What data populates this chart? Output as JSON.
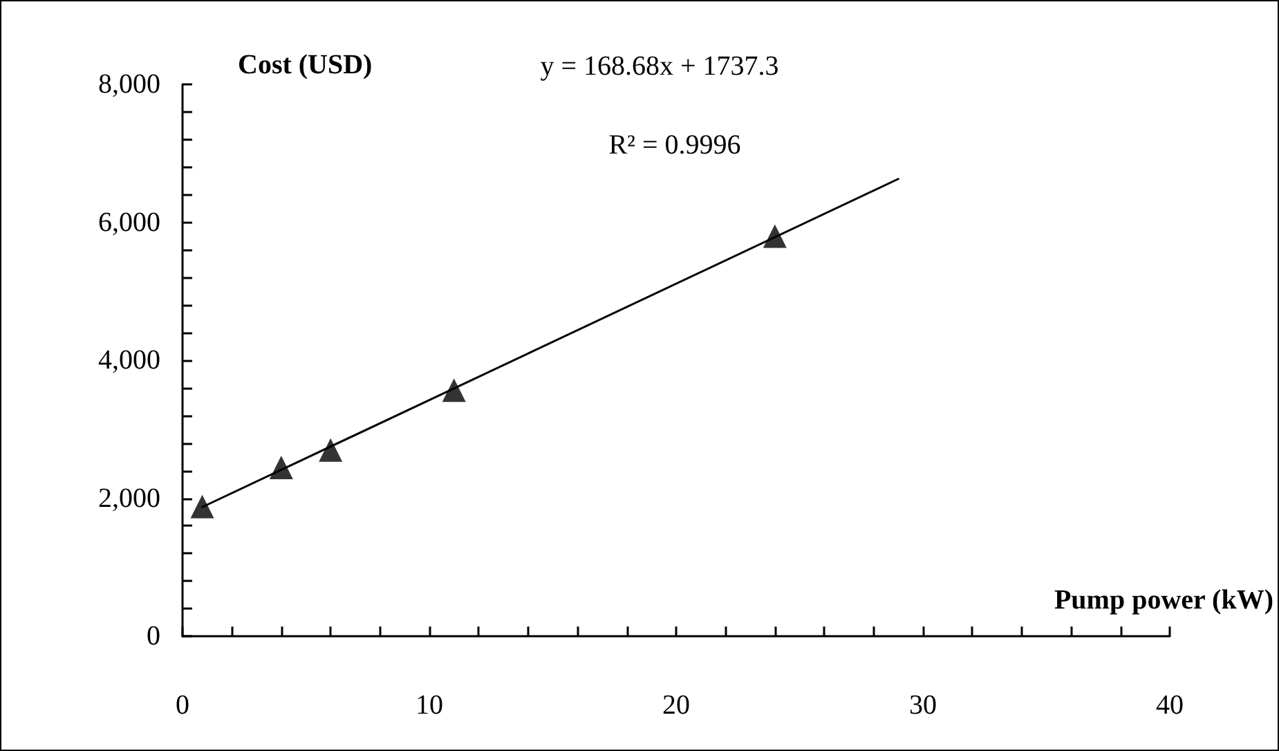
{
  "chart_data": {
    "type": "scatter",
    "xlabel": "Pump power (kW)",
    "ylabel": "Cost (USD)",
    "annotations": [
      "y = 168.68x + 1737.3",
      "R² = 0.9996"
    ],
    "xlim": [
      0,
      40
    ],
    "ylim": [
      0,
      8000
    ],
    "xticks": [
      0,
      {
        "value": 2,
        "label": null
      },
      {
        "value": 4,
        "label": null
      },
      {
        "value": 6,
        "label": null
      },
      {
        "value": 8,
        "label": null
      },
      10,
      {
        "value": 12,
        "label": null
      },
      {
        "value": 14,
        "label": null
      },
      {
        "value": 16,
        "label": null
      },
      {
        "value": 18,
        "label": null
      },
      20,
      {
        "value": 22,
        "label": null
      },
      {
        "value": 24,
        "label": null
      },
      {
        "value": 26,
        "label": null
      },
      {
        "value": 28,
        "label": null
      },
      30,
      {
        "value": 32,
        "label": null
      },
      {
        "value": 34,
        "label": null
      },
      {
        "value": 36,
        "label": null
      },
      {
        "value": 38,
        "label": null
      },
      40
    ],
    "yticks": [
      0,
      {
        "value": 400,
        "label": null
      },
      {
        "value": 800,
        "label": null
      },
      {
        "value": 1200,
        "label": null
      },
      {
        "value": 1600,
        "label": null
      },
      {
        "value": 2000,
        "label": "2,000"
      },
      {
        "value": 2400,
        "label": null
      },
      {
        "value": 2800,
        "label": null
      },
      {
        "value": 3200,
        "label": null
      },
      {
        "value": 3600,
        "label": null
      },
      {
        "value": 4000,
        "label": "4,000"
      },
      {
        "value": 4400,
        "label": null
      },
      {
        "value": 4800,
        "label": null
      },
      {
        "value": 5200,
        "label": null
      },
      {
        "value": 5600,
        "label": null
      },
      {
        "value": 6000,
        "label": "6,000"
      },
      {
        "value": 6400,
        "label": null
      },
      {
        "value": 6800,
        "label": null
      },
      {
        "value": 7200,
        "label": null
      },
      {
        "value": 7600,
        "label": null
      },
      {
        "value": 8000,
        "label": "8,000"
      }
    ],
    "grid": false,
    "marker": "triangle",
    "series": [
      {
        "color": "#000000",
        "x": [
          0.8,
          4,
          6,
          11,
          24
        ],
        "values": [
          1880,
          2446,
          2700,
          3566,
          5800
        ]
      },
      {
        "type": "line",
        "color": "#000000",
        "marker": "none",
        "line_style": "solid",
        "x": [
          0.8,
          29
        ],
        "values": [
          1872,
          6629
        ]
      }
    ]
  }
}
